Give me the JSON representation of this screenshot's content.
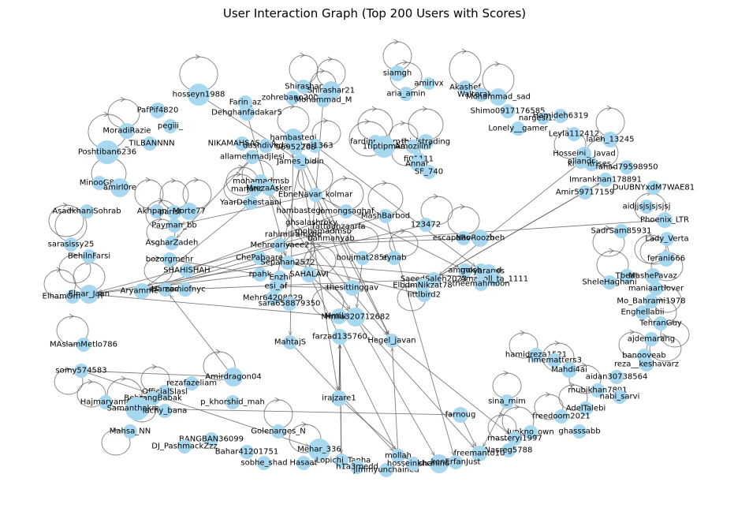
{
  "title": "User Interaction Graph (Top 200 Users with Scores)",
  "colors": {
    "node": "#a7d8ef",
    "edge": "#555555",
    "text": "#000000"
  },
  "nodes": [
    {
      "id": "hosseyn1988",
      "label": "hosseyn1988"
    },
    {
      "id": "Farin_az",
      "label": "Farin_az"
    },
    {
      "id": "zohrebano2000",
      "label": "zohrebano2000"
    },
    {
      "id": "Shirashar",
      "label": "Shirashar"
    },
    {
      "id": "ShirasharB",
      "label": "Shirashar21"
    },
    {
      "id": "Mohamad_M",
      "label": "Mohammad_M"
    },
    {
      "id": "siamgh",
      "label": "siamgh"
    },
    {
      "id": "amirivx",
      "label": "amirivx"
    },
    {
      "id": "Akashef",
      "label": "Akashef"
    },
    {
      "id": "Walterakam",
      "label": "Walterakam"
    },
    {
      "id": "Mohamad_sad",
      "label": "Mohammad_sad"
    },
    {
      "id": "aria_amin",
      "label": "aria_amin"
    },
    {
      "id": "PafPif4820",
      "label": "PafPif4820"
    },
    {
      "id": "Dehghanfadakar5",
      "label": "Dehghanfadakar5"
    },
    {
      "id": "pegiii_",
      "label": "pegiii_"
    },
    {
      "id": "MoradiRazie",
      "label": "MoradiRazie"
    },
    {
      "id": "Shimo0917176585",
      "label": "Shimo0917176585"
    },
    {
      "id": "nargesi",
      "label": "nargesi1346"
    },
    {
      "id": "Hamideh6319",
      "label": "Hamideh6319"
    },
    {
      "id": "Lonely__gamer",
      "label": "Lonely__gamer"
    },
    {
      "id": "Leyla112412",
      "label": "Leyla112412"
    },
    {
      "id": "laleh_13245",
      "label": "laleh_13245"
    },
    {
      "id": "TILBANNNN",
      "label": "_TILBANNNN"
    },
    {
      "id": "Poshtiban6236",
      "label": "Poshtiban6236"
    },
    {
      "id": "NIKAMAHSA",
      "label": "NIKAMAHSASARA"
    },
    {
      "id": "dashdiveda",
      "label": "dashdiveda"
    },
    {
      "id": "hambastegi",
      "label": "hambastegi"
    },
    {
      "id": "Brai1363",
      "label": "Brai1363"
    },
    {
      "id": "num952208",
      "label": "96952208"
    },
    {
      "id": "ghadieh",
      "label": "fardinpadam"
    },
    {
      "id": "thisistrading",
      "label": "thisistrading"
    },
    {
      "id": "Amoziiinf",
      "label": "Amoziiinf"
    },
    {
      "id": "tiptip",
      "label": "1tiptipmaa"
    },
    {
      "id": "Hosseini__Javad",
      "label": "Hosseini__Javad"
    },
    {
      "id": "allamehmadjlesi",
      "label": "allamehmadjlesi"
    },
    {
      "id": "James_bidin",
      "label": "James_bidin"
    },
    {
      "id": "fi01111",
      "label": "fi01111"
    },
    {
      "id": "knightrises",
      "label": "knightrises_"
    },
    {
      "id": "aliandrise",
      "label": "aliandr"
    },
    {
      "id": "fahad79598950",
      "label": "fahad79598950"
    },
    {
      "id": "Annar",
      "label": "Annar"
    },
    {
      "id": "SF_740",
      "label": "SF_740"
    },
    {
      "id": "MinooG80",
      "label": "MinooG80"
    },
    {
      "id": "amirl0re",
      "label": "amirl0re"
    },
    {
      "id": "mohamadmsb",
      "label": "mohamadmsb"
    },
    {
      "id": "marjanolme",
      "label": "marjanolme"
    },
    {
      "id": "Imrankhan178891",
      "label": "Imrankhan178891"
    },
    {
      "id": "Amir59717159",
      "label": "Amir59717159"
    },
    {
      "id": "DuUBNYxdM7WAE81",
      "label": "DuUBNYxdM7WAE81"
    },
    {
      "id": "MrezaAsker",
      "label": "MrezaAsker"
    },
    {
      "id": "EbneNavar",
      "label": "EbneNavar_kolmar"
    },
    {
      "id": "aidjjsjsjsjsjsj",
      "label": "aidjjsjsjsjsjsj"
    },
    {
      "id": "AsadkhaniSohrab",
      "label": "AsadkhaniSohrab"
    },
    {
      "id": "Akhpanha",
      "label": "Akhpanha"
    },
    {
      "id": "parisNo",
      "label": "parisNo"
    },
    {
      "id": "Morte77",
      "label": "Morte77"
    },
    {
      "id": "YaarDehestaani",
      "label": "YaarDehestaani"
    },
    {
      "id": "jomongsaghaf",
      "label": "jomongsaghaf"
    },
    {
      "id": "MashBarbod",
      "label": "MashBarbod"
    },
    {
      "id": "123472",
      "label": "123472"
    },
    {
      "id": "Phoenix_LTR",
      "label": "Phoenix_LTR"
    },
    {
      "id": "Payman",
      "label": "Payman_bb"
    },
    {
      "id": "sarasissy25",
      "label": "sarasissy25"
    },
    {
      "id": "SadrSam85931",
      "label": "SadrSam85931"
    },
    {
      "id": "Lady_Verta",
      "label": "Lady_Verta"
    },
    {
      "id": "escapeRoozbeh",
      "label": "escapeRoozbeh"
    },
    {
      "id": "NavRoozbeh",
      "label": "NavRoozbeh"
    },
    {
      "id": "Asgharz",
      "label": "AsgharZadeh"
    },
    {
      "id": "Mehreariyaee2",
      "label": "Mehreariyaee2"
    },
    {
      "id": "BehilnFarsi",
      "label": "BehilnFarsi"
    },
    {
      "id": "feranl666",
      "label": "ferani666"
    },
    {
      "id": "ChePahaare",
      "label": "ChePahaare"
    },
    {
      "id": "boujmatsa",
      "label": "boujmat2856"
    },
    {
      "id": "eynab",
      "label": "eynab"
    },
    {
      "id": "Sepahan2572",
      "label": "Sepahan2572"
    },
    {
      "id": "bozorgmehr",
      "label": "bozorgmehr"
    },
    {
      "id": "SHAHISHAH",
      "label": "SHAHISHAH"
    },
    {
      "id": "amgokh",
      "label": "amgokhi"
    },
    {
      "id": "moshahed",
      "label": "moshahed"
    },
    {
      "id": "yaranes",
      "label": "yaranes"
    },
    {
      "id": "Tbeat",
      "label": "Tbeat"
    },
    {
      "id": "Mashe",
      "label": "MashePavaz"
    },
    {
      "id": "SheleHaghani",
      "label": "SheleHaghani"
    },
    {
      "id": "ElhamOmidvari",
      "label": "ElhamOmidvari"
    },
    {
      "id": "Elnar_Jaan",
      "label": "Elnar_Jaan"
    },
    {
      "id": "Aryammeh",
      "label": "Aryammeh"
    },
    {
      "id": "Hamed",
      "label": "Hamed"
    },
    {
      "id": "Tehran_Rajani",
      "label": "rpahk"
    },
    {
      "id": "zamiofnyc",
      "label": "zamiofnyc"
    },
    {
      "id": "Enzhi",
      "label": "Enzhi"
    },
    {
      "id": "qh_af",
      "label": "esi_af"
    },
    {
      "id": "SAHALAVI",
      "label": "SAHALAVI"
    },
    {
      "id": "SaeedSaleh2023",
      "label": "SaeedSaleh2023"
    },
    {
      "id": "Amanoll",
      "label": "Amanoll_ta_1111"
    },
    {
      "id": "theemahmooooo",
      "label": "theemahmoon"
    },
    {
      "id": "ElbdmNikzat78",
      "label": "ElbdmNikzat78"
    },
    {
      "id": "thesittinggav",
      "label": "thesittinggav"
    },
    {
      "id": "littlbird2",
      "label": "littlbird2"
    },
    {
      "id": "maniaartlover",
      "label": "maniaartlover"
    },
    {
      "id": "Mehr64208029",
      "label": "Mehr64208029"
    },
    {
      "id": "sara658",
      "label": "sara658879350"
    },
    {
      "id": "Mo_Bahrami1978",
      "label": "Mo_Bahrami1978"
    },
    {
      "id": "Enghellabii",
      "label": "Enghellabii"
    },
    {
      "id": "Mmilad",
      "label": "Mmilad"
    },
    {
      "id": "n320707",
      "label": "Mmila320712682"
    },
    {
      "id": "TehranGuy",
      "label": "TehranGuy"
    },
    {
      "id": "MAslamMetlo786",
      "label": "MAslamMetlo786"
    },
    {
      "id": "farzad135760",
      "label": "farzad135760"
    },
    {
      "id": "MahtajS",
      "label": "MahtajS"
    },
    {
      "id": "Hegel_javan",
      "label": "Hegel_javan"
    },
    {
      "id": "ajdemarang",
      "label": "ajdemarang"
    },
    {
      "id": "somy574583",
      "label": "somy574583"
    },
    {
      "id": "hamidreza1521",
      "label": "hamidreza1521"
    },
    {
      "id": "Timematters3",
      "label": "Timematters3"
    },
    {
      "id": "banooyeab",
      "label": "banooyeab"
    },
    {
      "id": "reza__keshavarz",
      "label": "reza__keshavarz"
    },
    {
      "id": "Amirdragon04",
      "label": "Amirdragon04"
    },
    {
      "id": "Mahdi4ai",
      "label": "Mahdi4ai"
    },
    {
      "id": "aidan30738564",
      "label": "aidan30738564"
    },
    {
      "id": "rezafazeliam",
      "label": "rezafazeliam"
    },
    {
      "id": "OfficialSlasl",
      "label": "OfficialSlasl"
    },
    {
      "id": "BehrangBabak",
      "label": "BehrangBabak"
    },
    {
      "id": "mubikhan7891",
      "label": "mubikhan7891"
    },
    {
      "id": "nabi_sarvi",
      "label": "nabi_sarvi"
    },
    {
      "id": "Hajmaryam",
      "label": "Hajmaryam4"
    },
    {
      "id": "Samanthakram",
      "label": "Samanthakram"
    },
    {
      "id": "lachy_bana",
      "label": "lachy_bana"
    },
    {
      "id": "irajzare1",
      "label": "irajzare1"
    },
    {
      "id": "p_khorshid_mah",
      "label": "p_khorshid_mah"
    },
    {
      "id": "sina_mim",
      "label": "sina_mim"
    },
    {
      "id": "AdelTalebi",
      "label": "AdelTalebi"
    },
    {
      "id": "freedoom2021",
      "label": "freedoom2021"
    },
    {
      "id": "farnoug",
      "label": "farnoug"
    },
    {
      "id": "Mahsa_NN",
      "label": "Mahsa_NN"
    },
    {
      "id": "BANGBAN36099",
      "label": "BANGBAN36099"
    },
    {
      "id": "Golenarges_N",
      "label": "Golenarges_N"
    },
    {
      "id": "lunkno_own",
      "label": "lunkno_own"
    },
    {
      "id": "ghasssabb",
      "label": "ghasssabb"
    },
    {
      "id": "masteryi1997",
      "label": "masteryi1997"
    },
    {
      "id": "DJ_PashmackZzz",
      "label": "DJ_PashmackZzz"
    },
    {
      "id": "Bahar41201751",
      "label": "Bahar41201751"
    },
    {
      "id": "Mehar_336",
      "label": "Mehar_336"
    },
    {
      "id": "Lopichi_Tanha",
      "label": "_Lopichi_Tanha"
    },
    {
      "id": "Nasreg5788",
      "label": "Nasreg5788"
    },
    {
      "id": "freemanto10",
      "label": "freemanto10"
    },
    {
      "id": "mollah",
      "label": "mollah"
    },
    {
      "id": "sobhe_shad",
      "label": "sobhe_shad"
    },
    {
      "id": "Hasaat",
      "label": "Hasaat"
    },
    {
      "id": "h1a3medd",
      "label": "h1a3medd"
    },
    {
      "id": "jimmyunchained",
      "label": "jimmyunchained"
    },
    {
      "id": "hosseinkhom",
      "label": "hosseinkhom"
    },
    {
      "id": "shahin660",
      "label": "shahin660"
    },
    {
      "id": "kenErfanJust",
      "label": "kenErfanJust"
    }
  ],
  "center_labels": [
    "hambastegi",
    "ghsalashroky",
    "mohamadmsb",
    "rahimiiramkoo",
    "fattaahzaarfa",
    "bahmanyab"
  ]
}
